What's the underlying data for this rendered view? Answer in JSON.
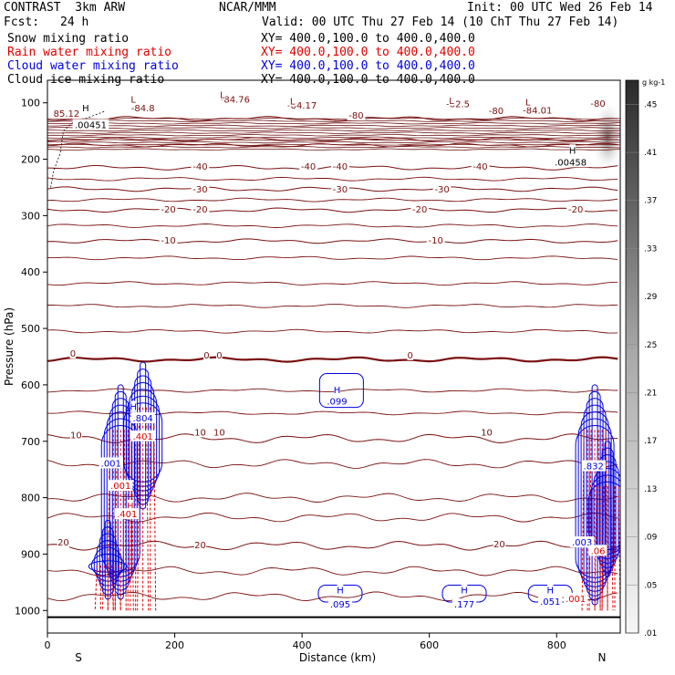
{
  "header": {
    "model": "CONTRAST  3km ARW",
    "org": "NCAR/MMM",
    "init": "Init: 00 UTC Wed 26 Feb 14",
    "fcst_label": "Fcst:",
    "fcst_value": "24 h",
    "valid": "Valid: 00 UTC Thu 27 Feb 14 (10 ChT Thu 27 Feb 14)",
    "fields": [
      {
        "name": "Snow mixing ratio",
        "xy": "XY= 400.0,100.0 to 400.0,400.0",
        "color": "#000000"
      },
      {
        "name": "Rain water mixing ratio",
        "xy": "XY= 400.0,100.0 to 400.0,400.0",
        "color": "#e00000"
      },
      {
        "name": "Cloud water mixing ratio",
        "xy": "XY= 400.0,100.0 to 400.0,400.0",
        "color": "#0000e0"
      },
      {
        "name": "Cloud ice mixing ratio",
        "xy": "XY= 400.0,100.0 to 400.0,400.0",
        "color": "#000000"
      }
    ]
  },
  "chart_data": {
    "type": "contour cross-section",
    "xlabel": "Distance (km)",
    "ylabel": "Pressure (hPa)",
    "xlim": [
      0,
      900
    ],
    "ylim": [
      1040,
      60
    ],
    "x_ticks": [
      0,
      200,
      400,
      600,
      800
    ],
    "y_ticks": [
      100,
      200,
      300,
      400,
      500,
      600,
      700,
      800,
      900,
      1000
    ],
    "x_end_labels": {
      "left": "S",
      "right": "N"
    },
    "colorbar": {
      "unit": "g kg-1",
      "labels": [
        ".01",
        ".05",
        ".09",
        ".13",
        ".17",
        ".21",
        ".25",
        ".29",
        ".33",
        ".37",
        ".41",
        ".45"
      ],
      "min": 0.01,
      "max": 0.47
    },
    "temperature_contours": [
      {
        "value": -80,
        "p": 128
      },
      {
        "value": -40,
        "p": 215
      },
      {
        "value": -30,
        "p": 253
      },
      {
        "value": -20,
        "p": 290
      },
      {
        "value": -10,
        "p": 345
      },
      {
        "value": 0,
        "p": 555
      },
      {
        "value": 10,
        "p": 695
      },
      {
        "value": 20,
        "p": 885
      }
    ],
    "labels": [
      {
        "text": "-84.76",
        "x": 295,
        "p": 95,
        "color": "#7a1010"
      },
      {
        "text": "-84.17",
        "x": 400,
        "p": 105,
        "color": "#7a1010"
      },
      {
        "text": "-82.5",
        "x": 645,
        "p": 103,
        "color": "#7a1010"
      },
      {
        "text": "-84.01",
        "x": 770,
        "p": 114,
        "color": "#7a1010"
      },
      {
        "text": "-84.8",
        "x": 150,
        "p": 110,
        "color": "#7a1010"
      },
      {
        "text": "85.12",
        "x": 30,
        "p": 120,
        "color": "#7a1010"
      },
      {
        "text": "-80",
        "x": 485,
        "p": 123,
        "color": "#7a1010"
      },
      {
        "text": "-80",
        "x": 705,
        "p": 115,
        "color": "#7a1010"
      },
      {
        "text": "-80",
        "x": 865,
        "p": 102,
        "color": "#7a1010"
      },
      {
        "text": "-40",
        "x": 240,
        "p": 214,
        "color": "#7a1010"
      },
      {
        "text": "-40",
        "x": 410,
        "p": 214,
        "color": "#7a1010"
      },
      {
        "text": "-40",
        "x": 460,
        "p": 214,
        "color": "#7a1010"
      },
      {
        "text": "-40",
        "x": 680,
        "p": 214,
        "color": "#7a1010"
      },
      {
        "text": "-30",
        "x": 240,
        "p": 254,
        "color": "#7a1010"
      },
      {
        "text": "-30",
        "x": 460,
        "p": 254,
        "color": "#7a1010"
      },
      {
        "text": "-30",
        "x": 620,
        "p": 254,
        "color": "#7a1010"
      },
      {
        "text": "-20",
        "x": 190,
        "p": 290,
        "color": "#7a1010"
      },
      {
        "text": "-20",
        "x": 240,
        "p": 290,
        "color": "#7a1010"
      },
      {
        "text": "-20",
        "x": 585,
        "p": 290,
        "color": "#7a1010"
      },
      {
        "text": "-20",
        "x": 830,
        "p": 290,
        "color": "#7a1010"
      },
      {
        "text": "-10",
        "x": 190,
        "p": 345,
        "color": "#7a1010"
      },
      {
        "text": "-10",
        "x": 610,
        "p": 345,
        "color": "#7a1010"
      },
      {
        "text": "0",
        "x": 40,
        "p": 545,
        "color": "#7a1010"
      },
      {
        "text": "0",
        "x": 250,
        "p": 548,
        "color": "#7a1010"
      },
      {
        "text": "0",
        "x": 270,
        "p": 548,
        "color": "#7a1010"
      },
      {
        "text": "0",
        "x": 570,
        "p": 548,
        "color": "#7a1010"
      },
      {
        "text": "10",
        "x": 45,
        "p": 690,
        "color": "#7a1010"
      },
      {
        "text": "10",
        "x": 240,
        "p": 685,
        "color": "#7a1010"
      },
      {
        "text": "10",
        "x": 270,
        "p": 685,
        "color": "#7a1010"
      },
      {
        "text": "10",
        "x": 690,
        "p": 685,
        "color": "#7a1010"
      },
      {
        "text": "20",
        "x": 25,
        "p": 880,
        "color": "#7a1010"
      },
      {
        "text": "20",
        "x": 240,
        "p": 885,
        "color": "#7a1010"
      },
      {
        "text": "20",
        "x": 710,
        "p": 883,
        "color": "#7a1010"
      },
      {
        "text": "H",
        "x": 60,
        "p": 110,
        "color": "#000000"
      },
      {
        "text": ".00451",
        "x": 68,
        "p": 140,
        "color": "#000000"
      },
      {
        "text": "H",
        "x": 825,
        "p": 185,
        "color": "#000000"
      },
      {
        "text": ".00458",
        "x": 822,
        "p": 206,
        "color": "#000000"
      },
      {
        "text": "L",
        "x": 135,
        "p": 95,
        "color": "#7a1010"
      },
      {
        "text": "L",
        "x": 275,
        "p": 87,
        "color": "#7a1010"
      },
      {
        "text": "L",
        "x": 385,
        "p": 98,
        "color": "#7a1010"
      },
      {
        "text": "L",
        "x": 635,
        "p": 97,
        "color": "#7a1010"
      },
      {
        "text": "L",
        "x": 755,
        "p": 100,
        "color": "#7a1010"
      },
      {
        "text": "H",
        "x": 455,
        "p": 610,
        "color": "#0000e0"
      },
      {
        "text": ".099",
        "x": 455,
        "p": 630,
        "color": "#0000e0"
      },
      {
        "text": "H",
        "x": 135,
        "p": 640,
        "color": "#0000e0"
      },
      {
        "text": ".804",
        "x": 150,
        "p": 660,
        "color": "#0000e0"
      },
      {
        "text": ".001",
        "x": 100,
        "p": 740,
        "color": "#0000e0"
      },
      {
        "text": ".001",
        "x": 115,
        "p": 780,
        "color": "#e00000"
      },
      {
        "text": ".401",
        "x": 150,
        "p": 692,
        "color": "#e00000"
      },
      {
        "text": "H",
        "x": 130,
        "p": 815,
        "color": "#e00000"
      },
      {
        "text": ".401",
        "x": 125,
        "p": 830,
        "color": "#e00000"
      },
      {
        "text": "H",
        "x": 460,
        "p": 965,
        "color": "#0000e0"
      },
      {
        "text": ".095",
        "x": 460,
        "p": 990,
        "color": "#0000e0"
      },
      {
        "text": "H",
        "x": 655,
        "p": 965,
        "color": "#0000e0"
      },
      {
        "text": ".177",
        "x": 655,
        "p": 990,
        "color": "#0000e0"
      },
      {
        "text": "H",
        "x": 790,
        "p": 965,
        "color": "#0000e0"
      },
      {
        "text": ".051",
        "x": 790,
        "p": 985,
        "color": "#0000e0"
      },
      {
        "text": ".003",
        "x": 840,
        "p": 880,
        "color": "#0000e0"
      },
      {
        "text": ".06",
        "x": 865,
        "p": 895,
        "color": "#e00000"
      },
      {
        "text": ".001",
        "x": 830,
        "p": 980,
        "color": "#e00000"
      },
      {
        "text": ".832",
        "x": 858,
        "p": 745,
        "color": "#0000e0"
      }
    ]
  }
}
